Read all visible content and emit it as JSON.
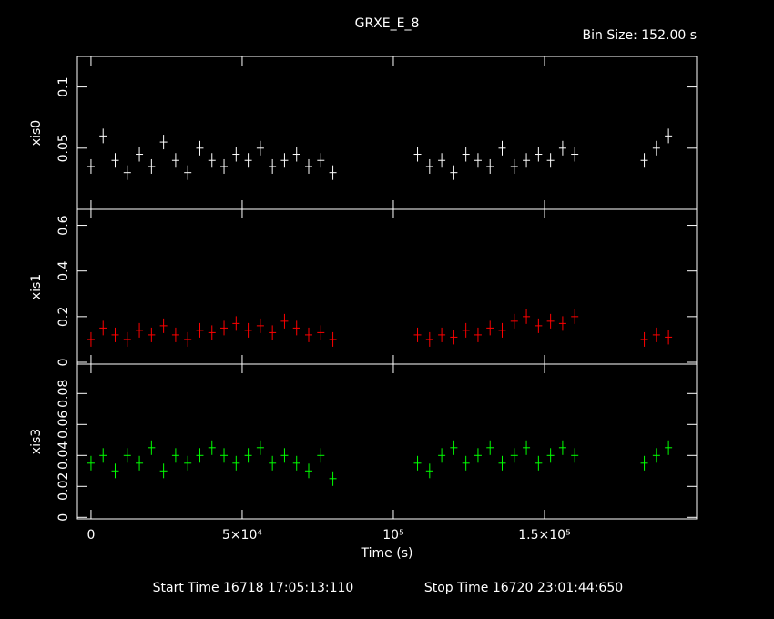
{
  "title": "GRXE_E_8",
  "subtitle": "Bin Size: 152.00 s",
  "x_label": "Time (s)",
  "footer_start": "Start Time 16718 17:05:13:110",
  "footer_stop": "Stop Time 16720 23:01:44:650",
  "chart_data": [
    {
      "type": "scatter",
      "y_label": "xis0",
      "color": "#ffffff",
      "x": [
        0,
        4000,
        8000,
        12000,
        16000,
        20000,
        24000,
        28000,
        32000,
        36000,
        40000,
        44000,
        48000,
        52000,
        56000,
        60000,
        64000,
        68000,
        72000,
        76000,
        80000,
        108000,
        112000,
        116000,
        120000,
        124000,
        128000,
        132000,
        136000,
        140000,
        144000,
        148000,
        152000,
        156000,
        160000,
        183000,
        187000,
        191000
      ],
      "values": [
        0.035,
        0.06,
        0.04,
        0.03,
        0.045,
        0.035,
        0.055,
        0.04,
        0.03,
        0.05,
        0.04,
        0.035,
        0.045,
        0.04,
        0.05,
        0.035,
        0.04,
        0.045,
        0.035,
        0.04,
        0.03,
        0.045,
        0.035,
        0.04,
        0.03,
        0.045,
        0.04,
        0.035,
        0.05,
        0.035,
        0.04,
        0.045,
        0.04,
        0.05,
        0.045,
        0.04,
        0.05,
        0.06
      ],
      "ylim": [
        0,
        0.125
      ],
      "yticks": [
        0.05,
        0.1
      ]
    },
    {
      "type": "scatter",
      "y_label": "xis1",
      "color": "#ff0000",
      "x": [
        0,
        4000,
        8000,
        12000,
        16000,
        20000,
        24000,
        28000,
        32000,
        36000,
        40000,
        44000,
        48000,
        52000,
        56000,
        60000,
        64000,
        68000,
        72000,
        76000,
        80000,
        108000,
        112000,
        116000,
        120000,
        124000,
        128000,
        132000,
        136000,
        140000,
        144000,
        148000,
        152000,
        156000,
        160000,
        183000,
        187000,
        191000
      ],
      "values": [
        0.1,
        0.15,
        0.12,
        0.1,
        0.14,
        0.12,
        0.16,
        0.12,
        0.1,
        0.14,
        0.13,
        0.15,
        0.17,
        0.14,
        0.16,
        0.13,
        0.18,
        0.15,
        0.12,
        0.13,
        0.1,
        0.12,
        0.1,
        0.12,
        0.11,
        0.14,
        0.12,
        0.15,
        0.14,
        0.18,
        0.2,
        0.16,
        0.18,
        0.17,
        0.2,
        0.1,
        0.12,
        0.11
      ],
      "ylim": [
        -0.008,
        0.67
      ],
      "yticks": [
        0,
        0.2,
        0.4,
        0.6
      ]
    },
    {
      "type": "scatter",
      "y_label": "xis3",
      "color": "#00ff00",
      "x": [
        0,
        4000,
        8000,
        12000,
        16000,
        20000,
        24000,
        28000,
        32000,
        36000,
        40000,
        44000,
        48000,
        52000,
        56000,
        60000,
        64000,
        68000,
        72000,
        76000,
        80000,
        108000,
        112000,
        116000,
        120000,
        124000,
        128000,
        132000,
        136000,
        140000,
        144000,
        148000,
        152000,
        156000,
        160000,
        183000,
        187000,
        191000
      ],
      "values": [
        0.035,
        0.04,
        0.03,
        0.04,
        0.035,
        0.045,
        0.03,
        0.04,
        0.035,
        0.04,
        0.045,
        0.04,
        0.035,
        0.04,
        0.045,
        0.035,
        0.04,
        0.035,
        0.03,
        0.04,
        0.025,
        0.035,
        0.03,
        0.04,
        0.045,
        0.035,
        0.04,
        0.045,
        0.035,
        0.04,
        0.045,
        0.035,
        0.04,
        0.045,
        0.04,
        0.035,
        0.04,
        0.045
      ],
      "ylim": [
        -0.001,
        0.099
      ],
      "yticks": [
        0,
        0.02,
        0.04,
        0.06,
        0.08
      ],
      "xlim": [
        -4500,
        200300
      ],
      "xticks": [
        0,
        {
          "value": 50000,
          "label": "5×10⁴"
        },
        {
          "value": 100000,
          "label": "10⁵"
        },
        {
          "value": 150000,
          "label": "1.5×10⁵"
        }
      ]
    }
  ]
}
